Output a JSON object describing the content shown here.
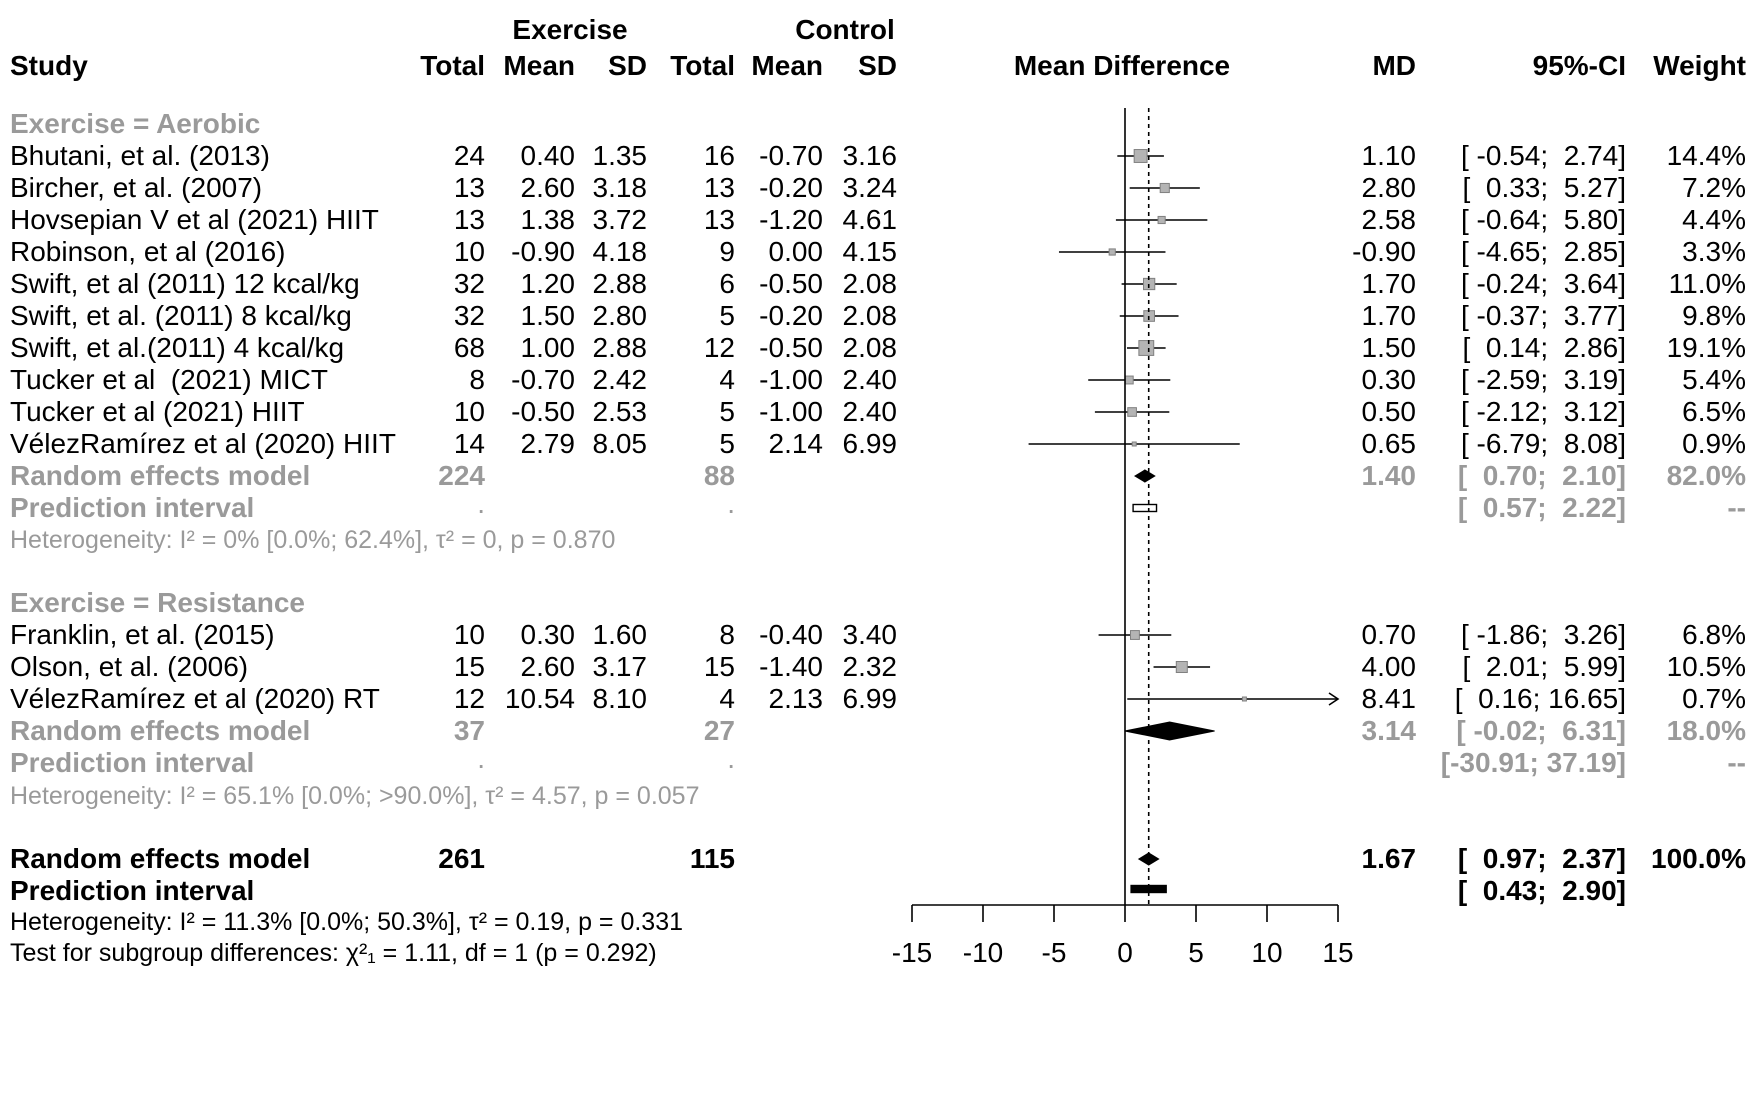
{
  "chart_data": {
    "type": "forest",
    "effect_measure": "Mean Difference",
    "x_axis": {
      "min": -15,
      "max": 15,
      "ticks": [
        "-15",
        "-10",
        "-5",
        "0",
        "5",
        "10",
        "15"
      ],
      "null_value": 0,
      "overall_line": 1.67
    },
    "header": {
      "group1": "Exercise",
      "group2": "Control",
      "study": "Study",
      "total": "Total",
      "mean": "Mean",
      "sd": "SD",
      "plot_title": "Mean Difference",
      "md": "MD",
      "ci": "95%-CI",
      "weight": "Weight"
    },
    "subgroups": [
      {
        "title": "Exercise = Aerobic",
        "studies": [
          {
            "name": "Bhutani, et al. (2013)",
            "e_total": "24",
            "e_mean": "0.40",
            "e_sd": "1.35",
            "c_total": "16",
            "c_mean": "-0.70",
            "c_sd": "3.16",
            "md_text": "1.10",
            "ci_text": "[ -0.54;  2.74]",
            "weight_text": "14.4%",
            "md": 1.1,
            "lo": -0.54,
            "hi": 2.74,
            "w": 14.4
          },
          {
            "name": "Bircher, et al. (2007)",
            "e_total": "13",
            "e_mean": "2.60",
            "e_sd": "3.18",
            "c_total": "13",
            "c_mean": "-0.20",
            "c_sd": "3.24",
            "md_text": "2.80",
            "ci_text": "[  0.33;  5.27]",
            "weight_text": "7.2%",
            "md": 2.8,
            "lo": 0.33,
            "hi": 5.27,
            "w": 7.2
          },
          {
            "name": "Hovsepian V et al (2021) HIIT",
            "e_total": "13",
            "e_mean": "1.38",
            "e_sd": "3.72",
            "c_total": "13",
            "c_mean": "-1.20",
            "c_sd": "4.61",
            "md_text": "2.58",
            "ci_text": "[ -0.64;  5.80]",
            "weight_text": "4.4%",
            "md": 2.58,
            "lo": -0.64,
            "hi": 5.8,
            "w": 4.4
          },
          {
            "name": "Robinson, et al (2016)",
            "e_total": "10",
            "e_mean": "-0.90",
            "e_sd": "4.18",
            "c_total": "9",
            "c_mean": "0.00",
            "c_sd": "4.15",
            "md_text": "-0.90",
            "ci_text": "[ -4.65;  2.85]",
            "weight_text": "3.3%",
            "md": -0.9,
            "lo": -4.65,
            "hi": 2.85,
            "w": 3.3
          },
          {
            "name": "Swift, et al (2011) 12 kcal/kg",
            "e_total": "32",
            "e_mean": "1.20",
            "e_sd": "2.88",
            "c_total": "6",
            "c_mean": "-0.50",
            "c_sd": "2.08",
            "md_text": "1.70",
            "ci_text": "[ -0.24;  3.64]",
            "weight_text": "11.0%",
            "md": 1.7,
            "lo": -0.24,
            "hi": 3.64,
            "w": 11.0
          },
          {
            "name": "Swift, et al. (2011) 8 kcal/kg",
            "e_total": "32",
            "e_mean": "1.50",
            "e_sd": "2.80",
            "c_total": "5",
            "c_mean": "-0.20",
            "c_sd": "2.08",
            "md_text": "1.70",
            "ci_text": "[ -0.37;  3.77]",
            "weight_text": "9.8%",
            "md": 1.7,
            "lo": -0.37,
            "hi": 3.77,
            "w": 9.8
          },
          {
            "name": "Swift, et al.(2011) 4 kcal/kg",
            "e_total": "68",
            "e_mean": "1.00",
            "e_sd": "2.88",
            "c_total": "12",
            "c_mean": "-0.50",
            "c_sd": "2.08",
            "md_text": "1.50",
            "ci_text": "[  0.14;  2.86]",
            "weight_text": "19.1%",
            "md": 1.5,
            "lo": 0.14,
            "hi": 2.86,
            "w": 19.1
          },
          {
            "name": "Tucker et al  (2021) MICT",
            "e_total": "8",
            "e_mean": "-0.70",
            "e_sd": "2.42",
            "c_total": "4",
            "c_mean": "-1.00",
            "c_sd": "2.40",
            "md_text": "0.30",
            "ci_text": "[ -2.59;  3.19]",
            "weight_text": "5.4%",
            "md": 0.3,
            "lo": -2.59,
            "hi": 3.19,
            "w": 5.4
          },
          {
            "name": "Tucker et al (2021) HIIT",
            "e_total": "10",
            "e_mean": "-0.50",
            "e_sd": "2.53",
            "c_total": "5",
            "c_mean": "-1.00",
            "c_sd": "2.40",
            "md_text": "0.50",
            "ci_text": "[ -2.12;  3.12]",
            "weight_text": "6.5%",
            "md": 0.5,
            "lo": -2.12,
            "hi": 3.12,
            "w": 6.5
          },
          {
            "name": "VélezRamírez et al (2020) HIIT",
            "e_total": "14",
            "e_mean": "2.79",
            "e_sd": "8.05",
            "c_total": "5",
            "c_mean": "2.14",
            "c_sd": "6.99",
            "md_text": "0.65",
            "ci_text": "[ -6.79;  8.08]",
            "weight_text": "0.9%",
            "md": 0.65,
            "lo": -6.79,
            "hi": 8.08,
            "w": 0.9
          }
        ],
        "model": {
          "label": "Random effects model",
          "e_total": "224",
          "c_total": "88",
          "md_text": "1.40",
          "ci_text": "[  0.70;  2.10]",
          "weight_text": "82.0%",
          "md": 1.4,
          "lo": 0.7,
          "hi": 2.1
        },
        "prediction": {
          "label": "Prediction interval",
          "e_dot": ".",
          "c_dot": ".",
          "ci_text": "[  0.57;  2.22]",
          "weight_text": "--",
          "lo": 0.57,
          "hi": 2.22
        },
        "heterogeneity": "Heterogeneity: I² = 0% [0.0%; 62.4%], τ² = 0, p = 0.870"
      },
      {
        "title": "Exercise = Resistance",
        "studies": [
          {
            "name": "Franklin, et al. (2015)",
            "e_total": "10",
            "e_mean": "0.30",
            "e_sd": "1.60",
            "c_total": "8",
            "c_mean": "-0.40",
            "c_sd": "3.40",
            "md_text": "0.70",
            "ci_text": "[ -1.86;  3.26]",
            "weight_text": "6.8%",
            "md": 0.7,
            "lo": -1.86,
            "hi": 3.26,
            "w": 6.8
          },
          {
            "name": "Olson, et al. (2006)",
            "e_total": "15",
            "e_mean": "2.60",
            "e_sd": "3.17",
            "c_total": "15",
            "c_mean": "-1.40",
            "c_sd": "2.32",
            "md_text": "4.00",
            "ci_text": "[  2.01;  5.99]",
            "weight_text": "10.5%",
            "md": 4.0,
            "lo": 2.01,
            "hi": 5.99,
            "w": 10.5
          },
          {
            "name": "VélezRamírez et al (2020) RT",
            "e_total": "12",
            "e_mean": "10.54",
            "e_sd": "8.10",
            "c_total": "4",
            "c_mean": "2.13",
            "c_sd": "6.99",
            "md_text": "8.41",
            "ci_text": "[  0.16; 16.65]",
            "weight_text": "0.7%",
            "md": 8.41,
            "lo": 0.16,
            "hi": 16.65,
            "w": 0.7
          }
        ],
        "model": {
          "label": "Random effects model",
          "e_total": "37",
          "c_total": "27",
          "md_text": "3.14",
          "ci_text": "[ -0.02;  6.31]",
          "weight_text": "18.0%",
          "md": 3.14,
          "lo": -0.02,
          "hi": 6.31
        },
        "prediction": {
          "label": "Prediction interval",
          "e_dot": ".",
          "c_dot": ".",
          "ci_text": "[-30.91; 37.19]",
          "weight_text": "--",
          "lo": -30.91,
          "hi": 37.19
        },
        "heterogeneity": "Heterogeneity: I² = 65.1% [0.0%; >90.0%], τ² = 4.57, p = 0.057"
      }
    ],
    "overall": {
      "model": {
        "label": "Random effects model",
        "e_total": "261",
        "c_total": "115",
        "md_text": "1.67",
        "ci_text": "[  0.97;  2.37]",
        "weight_text": "100.0%",
        "md": 1.67,
        "lo": 0.97,
        "hi": 2.37
      },
      "prediction": {
        "label": "Prediction interval",
        "ci_text": "[  0.43;  2.90]",
        "lo": 0.43,
        "hi": 2.9
      },
      "heterogeneity": "Heterogeneity: I² = 11.3% [0.0%; 50.3%], τ² = 0.19, p = 0.331",
      "subgroup_test": "Test for subgroup differences: χ²₁ = 1.11, df = 1 (p = 0.292)"
    }
  }
}
